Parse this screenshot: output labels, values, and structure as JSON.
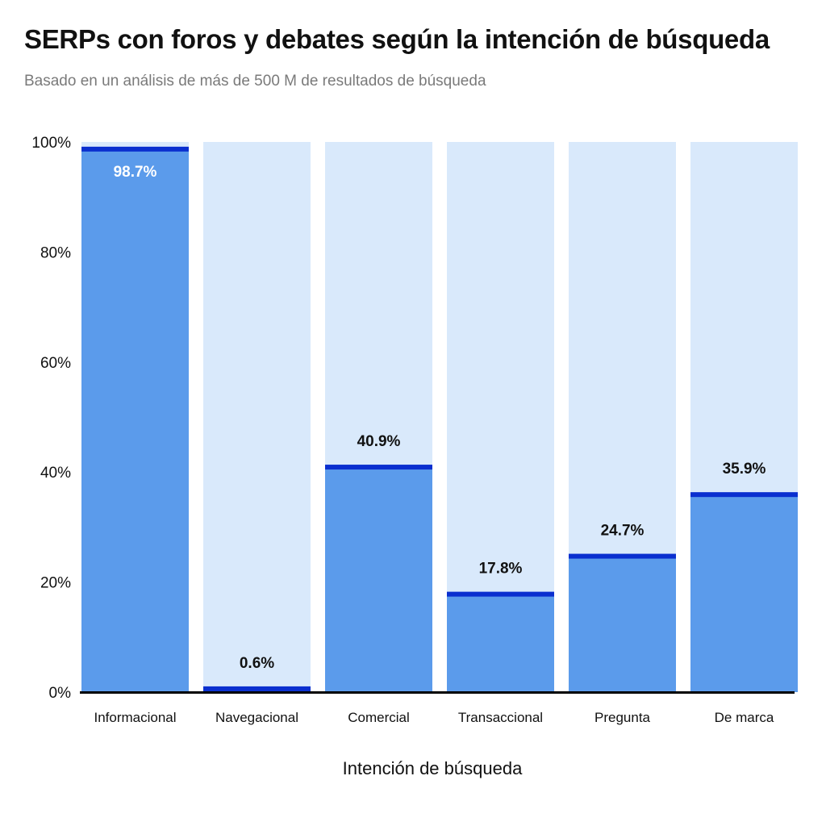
{
  "chart_data": {
    "type": "bar",
    "title": "SERPs con foros y debates según la intención de búsqueda",
    "subtitle": "Basado en un análisis de más de 500 M de resultados de búsqueda",
    "xlabel": "Intención de búsqueda",
    "ylabel": "",
    "ylim": [
      0,
      100
    ],
    "yticks": [
      "0%",
      "20%",
      "40%",
      "60%",
      "80%",
      "100%"
    ],
    "ytick_values": [
      0,
      20,
      40,
      60,
      80,
      100
    ],
    "categories": [
      "Informacional",
      "Navegacional",
      "Comercial",
      "Transaccional",
      "Pregunta",
      "De marca"
    ],
    "values": [
      98.7,
      0.6,
      40.9,
      17.8,
      24.7,
      35.9
    ],
    "data_labels": [
      "98.7%",
      "0.6%",
      "40.9%",
      "17.8%",
      "24.7%",
      "35.9%"
    ],
    "grid": false,
    "legend": "none",
    "colors": {
      "bar": "#5b9beb",
      "bar_top_line": "#0a2fcf",
      "background_bar": "#d9e9fb",
      "axis": "#000000",
      "label_inside": "#ffffff",
      "label_outside": "#111111"
    }
  }
}
